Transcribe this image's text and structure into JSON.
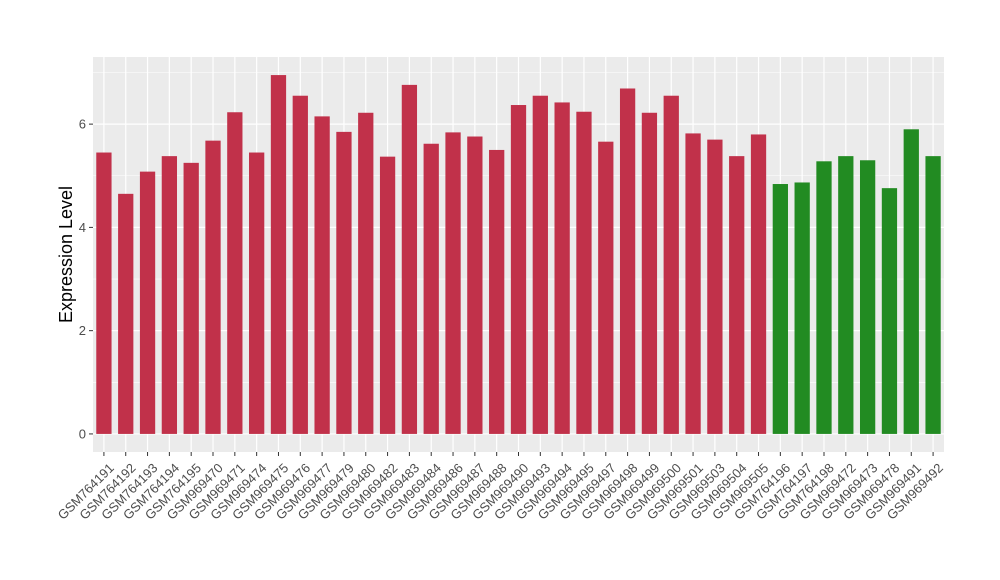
{
  "chart_data": {
    "type": "bar",
    "title": "",
    "xlabel": "",
    "ylabel": "Expression Level",
    "ylim": [
      -0.35,
      7.3
    ],
    "yticks": [
      0,
      2,
      4,
      6
    ],
    "grid": true,
    "categories": [
      "GSM764191",
      "GSM764192",
      "GSM764193",
      "GSM764194",
      "GSM764195",
      "GSM969470",
      "GSM969471",
      "GSM969474",
      "GSM969475",
      "GSM969476",
      "GSM969477",
      "GSM969479",
      "GSM969480",
      "GSM969482",
      "GSM969483",
      "GSM969484",
      "GSM969486",
      "GSM969487",
      "GSM969488",
      "GSM969490",
      "GSM969493",
      "GSM969494",
      "GSM969495",
      "GSM969497",
      "GSM969498",
      "GSM969499",
      "GSM969500",
      "GSM969501",
      "GSM969503",
      "GSM969504",
      "GSM969505",
      "GSM764196",
      "GSM764197",
      "GSM764198",
      "GSM969472",
      "GSM969473",
      "GSM969478",
      "GSM969491",
      "GSM969492"
    ],
    "values": [
      5.45,
      4.65,
      5.08,
      5.38,
      5.25,
      5.68,
      6.23,
      5.45,
      6.95,
      6.55,
      6.15,
      5.85,
      6.22,
      5.37,
      6.76,
      5.62,
      5.84,
      5.76,
      5.5,
      6.37,
      6.55,
      6.42,
      6.24,
      5.66,
      6.69,
      6.22,
      6.55,
      5.82,
      5.7,
      5.38,
      5.8,
      4.84,
      4.87,
      5.28,
      5.38,
      5.3,
      4.76,
      5.9,
      5.38
    ],
    "bar_colors": [
      "#c1314a",
      "#c1314a",
      "#c1314a",
      "#c1314a",
      "#c1314a",
      "#c1314a",
      "#c1314a",
      "#c1314a",
      "#c1314a",
      "#c1314a",
      "#c1314a",
      "#c1314a",
      "#c1314a",
      "#c1314a",
      "#c1314a",
      "#c1314a",
      "#c1314a",
      "#c1314a",
      "#c1314a",
      "#c1314a",
      "#c1314a",
      "#c1314a",
      "#c1314a",
      "#c1314a",
      "#c1314a",
      "#c1314a",
      "#c1314a",
      "#c1314a",
      "#c1314a",
      "#c1314a",
      "#c1314a",
      "#228b22",
      "#228b22",
      "#228b22",
      "#228b22",
      "#228b22",
      "#228b22",
      "#228b22",
      "#228b22"
    ],
    "panel_background": "#ebebeb",
    "gridline_color": "#ffffff"
  }
}
